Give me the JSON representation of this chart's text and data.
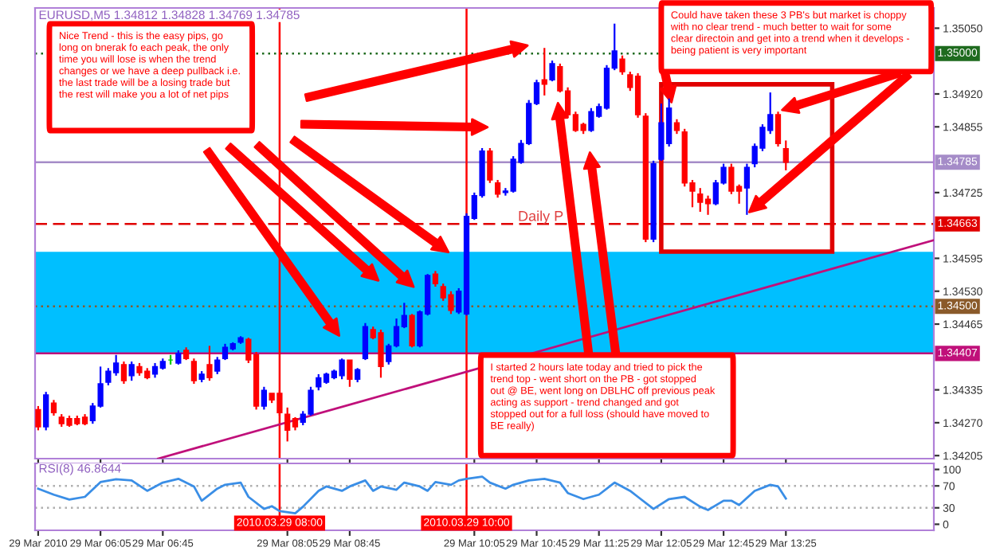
{
  "chart_data": [
    {
      "type": "candlestick",
      "title": "EURUSD,M5 1.34812 1.34828 1.34769 1.34785",
      "x": [
        "2010-03-29T05:25",
        "2010-03-29T05:30",
        "2010-03-29T05:35",
        "2010-03-29T05:40",
        "2010-03-29T05:45",
        "2010-03-29T05:50",
        "2010-03-29T05:55",
        "2010-03-29T06:00",
        "2010-03-29T06:05",
        "2010-03-29T06:10",
        "2010-03-29T06:15",
        "2010-03-29T06:20",
        "2010-03-29T06:25",
        "2010-03-29T06:30",
        "2010-03-29T06:35",
        "2010-03-29T06:40",
        "2010-03-29T06:45",
        "2010-03-29T06:50",
        "2010-03-29T06:55",
        "2010-03-29T07:00",
        "2010-03-29T07:05",
        "2010-03-29T07:10",
        "2010-03-29T07:15",
        "2010-03-29T07:20",
        "2010-03-29T07:25",
        "2010-03-29T07:30",
        "2010-03-29T07:35",
        "2010-03-29T07:40",
        "2010-03-29T07:45",
        "2010-03-29T07:50",
        "2010-03-29T07:55",
        "2010-03-29T08:00",
        "2010-03-29T08:05",
        "2010-03-29T08:10",
        "2010-03-29T08:15",
        "2010-03-29T08:20",
        "2010-03-29T08:25",
        "2010-03-29T08:30",
        "2010-03-29T08:35",
        "2010-03-29T08:40",
        "2010-03-29T08:45",
        "2010-03-29T08:50",
        "2010-03-29T08:55",
        "2010-03-29T09:00",
        "2010-03-29T09:05",
        "2010-03-29T09:10",
        "2010-03-29T09:15",
        "2010-03-29T09:20",
        "2010-03-29T09:25",
        "2010-03-29T09:30",
        "2010-03-29T09:35",
        "2010-03-29T09:40",
        "2010-03-29T09:45",
        "2010-03-29T09:50",
        "2010-03-29T09:55",
        "2010-03-29T10:00",
        "2010-03-29T10:05",
        "2010-03-29T10:10",
        "2010-03-29T10:15",
        "2010-03-29T10:20",
        "2010-03-29T10:25",
        "2010-03-29T10:30",
        "2010-03-29T10:35",
        "2010-03-29T10:40",
        "2010-03-29T10:45",
        "2010-03-29T10:50",
        "2010-03-29T10:55",
        "2010-03-29T11:00",
        "2010-03-29T11:05",
        "2010-03-29T11:10",
        "2010-03-29T11:15",
        "2010-03-29T11:20",
        "2010-03-29T11:25",
        "2010-03-29T11:30",
        "2010-03-29T11:35",
        "2010-03-29T11:40",
        "2010-03-29T11:45",
        "2010-03-29T11:50",
        "2010-03-29T11:55",
        "2010-03-29T12:00",
        "2010-03-29T12:05",
        "2010-03-29T12:10",
        "2010-03-29T12:15",
        "2010-03-29T12:20",
        "2010-03-29T12:25",
        "2010-03-29T12:30",
        "2010-03-29T12:35",
        "2010-03-29T12:40",
        "2010-03-29T12:45",
        "2010-03-29T12:50",
        "2010-03-29T12:55",
        "2010-03-29T13:00",
        "2010-03-29T13:05",
        "2010-03-29T13:10",
        "2010-03-29T13:15",
        "2010-03-29T13:20",
        "2010-03-29T13:25"
      ],
      "ohlc": [
        [
          1.34296,
          1.34303,
          1.34255,
          1.34262
        ],
        [
          1.34262,
          1.34331,
          1.34255,
          1.34325
        ],
        [
          1.34309,
          1.34315,
          1.34284,
          1.3429
        ],
        [
          1.34281,
          1.34287,
          1.34262,
          1.34268
        ],
        [
          1.34278,
          1.34284,
          1.34262,
          1.34265
        ],
        [
          1.34278,
          1.34284,
          1.34265,
          1.34268
        ],
        [
          1.34281,
          1.34287,
          1.34265,
          1.34268
        ],
        [
          1.34274,
          1.34309,
          1.34268,
          1.34303
        ],
        [
          1.34303,
          1.34381,
          1.343,
          1.34347
        ],
        [
          1.3435,
          1.34378,
          1.34344,
          1.34372
        ],
        [
          1.34369,
          1.34404,
          1.34363,
          1.34388
        ],
        [
          1.34385,
          1.34391,
          1.34347,
          1.34353
        ],
        [
          1.34363,
          1.34391,
          1.34353,
          1.34385
        ],
        [
          1.34381,
          1.34388,
          1.34363,
          1.34369
        ],
        [
          1.34372,
          1.34378,
          1.34356,
          1.34359
        ],
        [
          1.34366,
          1.34388,
          1.34359,
          1.34381
        ],
        [
          1.34378,
          1.34397,
          1.34375,
          1.34391
        ],
        [
          1.34394,
          1.34404,
          1.34385,
          1.34394
        ],
        [
          1.34388,
          1.34413,
          1.34385,
          1.34407
        ],
        [
          1.34413,
          1.34419,
          1.34394,
          1.34397
        ],
        [
          1.34391,
          1.34397,
          1.34347,
          1.34353
        ],
        [
          1.34356,
          1.34372,
          1.3435,
          1.34366
        ],
        [
          1.34385,
          1.34422,
          1.34353,
          1.34359
        ],
        [
          1.34372,
          1.344,
          1.34366,
          1.34394
        ],
        [
          1.34397,
          1.34426,
          1.34394,
          1.34419
        ],
        [
          1.34416,
          1.34429,
          1.34413,
          1.34426
        ],
        [
          1.34429,
          1.34441,
          1.34426,
          1.34438
        ],
        [
          1.34435,
          1.34438,
          1.34388,
          1.34394
        ],
        [
          1.34404,
          1.3441,
          1.34296,
          1.34303
        ],
        [
          1.34303,
          1.34341,
          1.34296,
          1.34334
        ],
        [
          1.34328,
          1.34328,
          1.34309,
          1.34315
        ],
        [
          1.34328,
          1.34334,
          1.34284,
          1.3429
        ],
        [
          1.34287,
          1.343,
          1.34233,
          1.34255
        ],
        [
          1.34278,
          1.34281,
          1.34255,
          1.34262
        ],
        [
          1.34271,
          1.34293,
          1.34265,
          1.34287
        ],
        [
          1.34287,
          1.34341,
          1.34284,
          1.34334
        ],
        [
          1.34341,
          1.34366,
          1.34334,
          1.34359
        ],
        [
          1.3435,
          1.34369,
          1.34347,
          1.34366
        ],
        [
          1.34359,
          1.34375,
          1.34356,
          1.34372
        ],
        [
          1.34363,
          1.34397,
          1.34356,
          1.34394
        ],
        [
          1.34394,
          1.34394,
          1.34341,
          1.34356
        ],
        [
          1.34356,
          1.34378,
          1.3435,
          1.34375
        ],
        [
          1.34397,
          1.34467,
          1.34394,
          1.3446
        ],
        [
          1.34454,
          1.3446,
          1.34435,
          1.34438
        ],
        [
          1.34448,
          1.34454,
          1.34359,
          1.34381
        ],
        [
          1.34391,
          1.34426,
          1.34385,
          1.34422
        ],
        [
          1.34422,
          1.34476,
          1.34419,
          1.3446
        ],
        [
          1.3446,
          1.34507,
          1.34457,
          1.34482
        ],
        [
          1.34482,
          1.34485,
          1.34419,
          1.34422
        ],
        [
          1.34422,
          1.34492,
          1.34419,
          1.34489
        ],
        [
          1.34485,
          1.34564,
          1.34482,
          1.34561
        ],
        [
          1.34564,
          1.3457,
          1.34539,
          1.34545
        ],
        [
          1.34539,
          1.34545,
          1.34511,
          1.34517
        ],
        [
          1.34523,
          1.3453,
          1.34485,
          1.34492
        ],
        [
          1.34489,
          1.34536,
          1.34485,
          1.3453
        ],
        [
          1.34485,
          1.34684,
          1.34482,
          1.34678
        ],
        [
          1.34674,
          1.34725,
          1.34671,
          1.34719
        ],
        [
          1.34719,
          1.34813,
          1.34715,
          1.34807
        ],
        [
          1.34807,
          1.34813,
          1.34744,
          1.3475
        ],
        [
          1.34744,
          1.3475,
          1.34715,
          1.34722
        ],
        [
          1.34725,
          1.34734,
          1.34719,
          1.34728
        ],
        [
          1.34728,
          1.34797,
          1.34725,
          1.34791
        ],
        [
          1.34785,
          1.34829,
          1.34782,
          1.34822
        ],
        [
          1.34822,
          1.34908,
          1.34819,
          1.34901
        ],
        [
          1.34901,
          1.34948,
          1.34898,
          1.34942
        ],
        [
          1.34948,
          1.35011,
          1.34917,
          1.34939
        ],
        [
          1.34948,
          1.34986,
          1.34945,
          1.3498
        ],
        [
          1.34974,
          1.3498,
          1.34923,
          1.34926
        ],
        [
          1.34926,
          1.34933,
          1.34873,
          1.34879
        ],
        [
          1.34879,
          1.34885,
          1.34845,
          1.34848
        ],
        [
          1.3486,
          1.34863,
          1.34841,
          1.34848
        ],
        [
          1.34848,
          1.34892,
          1.34845,
          1.34885
        ],
        [
          1.34876,
          1.34901,
          1.34873,
          1.34895
        ],
        [
          1.34892,
          1.34977,
          1.34889,
          1.34971
        ],
        [
          1.34971,
          1.35059,
          1.34967,
          1.35005
        ],
        [
          1.34989,
          1.34996,
          1.34958,
          1.34964
        ],
        [
          1.34958,
          1.34964,
          1.34926,
          1.34933
        ],
        [
          1.34955,
          1.34961,
          1.34873,
          1.34879
        ],
        [
          1.34876,
          1.34882,
          1.34627,
          1.34633
        ],
        [
          1.34633,
          1.34788,
          1.34627,
          1.34782
        ],
        [
          1.34791,
          1.34901,
          1.34788,
          1.34863
        ],
        [
          1.34822,
          1.34911,
          1.34816,
          1.34892
        ],
        [
          1.34863,
          1.3487,
          1.34841,
          1.34848
        ],
        [
          1.34845,
          1.34851,
          1.34737,
          1.34744
        ],
        [
          1.34744,
          1.3475,
          1.34696,
          1.34728
        ],
        [
          1.34722,
          1.34734,
          1.34687,
          1.34706
        ],
        [
          1.34712,
          1.34719,
          1.34681,
          1.34703
        ],
        [
          1.34703,
          1.3475,
          1.347,
          1.34744
        ],
        [
          1.34744,
          1.34782,
          1.34741,
          1.34775
        ],
        [
          1.34775,
          1.34782,
          1.34722,
          1.34728
        ],
        [
          1.34737,
          1.34741,
          1.34703,
          1.34728
        ],
        [
          1.34734,
          1.34782,
          1.34681,
          1.34775
        ],
        [
          1.34782,
          1.34822,
          1.34775,
          1.34816
        ],
        [
          1.34813,
          1.3486,
          1.34807,
          1.34854
        ],
        [
          1.34848,
          1.34923,
          1.34841,
          1.34879
        ],
        [
          1.34879,
          1.34885,
          1.34816,
          1.34822
        ],
        [
          1.34812,
          1.34828,
          1.34769,
          1.34785
        ]
      ],
      "colors": [
        "#ff0000",
        "#0000ff",
        "#ff0000",
        "#ff0000",
        "#ff0000",
        "#ff0000",
        "#ff0000",
        "#0000ff",
        "#0000ff",
        "#0000ff",
        "#0000ff",
        "#ff0000",
        "#0000ff",
        "#ff0000",
        "#ff0000",
        "#0000ff",
        "#0000ff",
        "#00cc00",
        "#0000ff",
        "#ff0000",
        "#ff0000",
        "#0000ff",
        "#ff0000",
        "#0000ff",
        "#0000ff",
        "#0000ff",
        "#0000ff",
        "#ff0000",
        "#ff0000",
        "#0000ff",
        "#ff0000",
        "#ff0000",
        "#ff0000",
        "#ff0000",
        "#0000ff",
        "#0000ff",
        "#0000ff",
        "#0000ff",
        "#0000ff",
        "#0000ff",
        "#ff0000",
        "#0000ff",
        "#0000ff",
        "#ff0000",
        "#ff0000",
        "#0000ff",
        "#0000ff",
        "#0000ff",
        "#ff0000",
        "#0000ff",
        "#0000ff",
        "#ff0000",
        "#ff0000",
        "#ff0000",
        "#0000ff",
        "#0000ff",
        "#0000ff",
        "#0000ff",
        "#ff0000",
        "#ff0000",
        "#0000ff",
        "#0000ff",
        "#0000ff",
        "#0000ff",
        "#0000ff",
        "#ff0000",
        "#0000ff",
        "#ff0000",
        "#ff0000",
        "#ff0000",
        "#ff0000",
        "#0000ff",
        "#0000ff",
        "#0000ff",
        "#0000ff",
        "#ff0000",
        "#ff0000",
        "#ff0000",
        "#ff0000",
        "#0000ff",
        "#0000ff",
        "#0000ff",
        "#ff0000",
        "#ff0000",
        "#ff0000",
        "#ff0000",
        "#ff0000",
        "#0000ff",
        "#0000ff",
        "#ff0000",
        "#ff0000",
        "#0000ff",
        "#0000ff",
        "#0000ff",
        "#0000ff",
        "#ff0000",
        "#ff0000"
      ],
      "series": [
        {
          "type": "line",
          "color": "#c0107a",
          "x": [
            "2010-03-29T06:42",
            "2010-03-29T15:00"
          ],
          "values": [
            1.34199,
            1.34631
          ]
        }
      ],
      "xlim": [
        "2010-03-29T05:23",
        "2010-03-29T15:00"
      ],
      "ylim": [
        1.34199,
        1.3509
      ],
      "xticks": [
        {
          "value": "2010-03-29T05:25",
          "label": null
        },
        {
          "value": "2010-03-29T06:05",
          "label": null
        },
        {
          "value": "2010-03-29T06:45",
          "label": null
        },
        {
          "value": "2010-03-29T08:05",
          "label": null
        },
        {
          "value": "2010-03-29T08:45",
          "label": null
        },
        {
          "value": "2010-03-29T10:05",
          "label": null
        },
        {
          "value": "2010-03-29T10:45",
          "label": null
        },
        {
          "value": "2010-03-29T11:25",
          "label": null
        },
        {
          "value": "2010-03-29T12:05",
          "label": null
        },
        {
          "value": "2010-03-29T12:45",
          "label": null
        },
        {
          "value": "2010-03-29T13:25",
          "label": null
        }
      ],
      "yticks": [
        {
          "value": 1.34205,
          "label": "1.34205"
        },
        {
          "value": 1.3427,
          "label": "1.34270"
        },
        {
          "value": 1.34335,
          "label": "1.34335"
        },
        {
          "value": 1.34465,
          "label": "1.34465"
        },
        {
          "value": 1.3453,
          "label": "1.34530"
        },
        {
          "value": 1.34595,
          "label": "1.34595"
        },
        {
          "value": 1.34725,
          "label": "1.34725"
        },
        {
          "value": 1.34855,
          "label": "1.34855"
        },
        {
          "value": 1.3492,
          "label": "1.34920"
        },
        {
          "value": 1.3505,
          "label": "1.35050"
        }
      ],
      "tick_labels": "y",
      "bands": [
        {
          "axis": "y",
          "from": 1.34407,
          "to": 1.34608,
          "color": "#00bfff"
        }
      ],
      "ref_lines": [
        {
          "axis": "y",
          "value": 1.35,
          "label": "1.35000",
          "color": "#1f6b1f",
          "line_style": "dotted"
        },
        {
          "axis": "y",
          "value": 1.34785,
          "label": "1.34785",
          "color": "#a58cc8",
          "line_style": "solid"
        },
        {
          "axis": "y",
          "value": 1.34663,
          "label": "1.34663",
          "color": "#e00000",
          "line_style": "dashed"
        },
        {
          "axis": "y",
          "value": 1.345,
          "label": "1.34500",
          "color": "#8a5a2a",
          "line_style": "dotted"
        },
        {
          "axis": "y",
          "value": 1.34407,
          "label": "1.34407",
          "color": "#c0107a",
          "line_style": "solid"
        },
        {
          "axis": "x",
          "value": "2010-03-29T08:00",
          "color": "#ff0000",
          "line_style": "solid"
        },
        {
          "axis": "x",
          "value": "2010-03-29T10:00",
          "color": "#ff0000",
          "line_style": "solid"
        }
      ],
      "annotations": [
        "Nice Trend - this is the easy pips, go\nlong on bnerak fo each peak, the only\ntime you will lose is when the trend\nchanges or we have a deep pullback i.e.\nthe last trade will be a losing trade but\nthe rest will make you a lot of net pips",
        "Could have taken these 3 PB's but market is choppy\nwith no clear trend - much better to wait for some\nclear directoin and get into a trend when it develops -\nbeing patient is very important",
        "I started 2 hours late today and tried to pick the\ntrend top - went short on the PB - got stopped\nout @ BE, went long on DBLHC off previous peak\nacting as support - trend changed and got\nstopped out for a full loss (should have moved to\nBE really)",
        {
          "text": "Daily P",
          "x": "2010-03-29T10:33",
          "y": 1.34663
        }
      ]
    },
    {
      "type": "line",
      "title": "RSI(8) 46.8644",
      "x": [
        "2010-03-29T05:25",
        "2010-03-29T05:35",
        "2010-03-29T05:45",
        "2010-03-29T05:55",
        "2010-03-29T06:05",
        "2010-03-29T06:15",
        "2010-03-29T06:25",
        "2010-03-29T06:35",
        "2010-03-29T06:45",
        "2010-03-29T06:55",
        "2010-03-29T07:05",
        "2010-03-29T07:10",
        "2010-03-29T07:20",
        "2010-03-29T07:25",
        "2010-03-29T07:35",
        "2010-03-29T07:40",
        "2010-03-29T07:50",
        "2010-03-29T07:55",
        "2010-03-29T08:00",
        "2010-03-29T08:10",
        "2010-03-29T08:15",
        "2010-03-29T08:25",
        "2010-03-29T08:30",
        "2010-03-29T08:40",
        "2010-03-29T08:45",
        "2010-03-29T08:55",
        "2010-03-29T09:00",
        "2010-03-29T09:05",
        "2010-03-29T09:15",
        "2010-03-29T09:20",
        "2010-03-29T09:30",
        "2010-03-29T09:35",
        "2010-03-29T09:40",
        "2010-03-29T09:50",
        "2010-03-29T09:55",
        "2010-03-29T10:00",
        "2010-03-29T10:10",
        "2010-03-29T10:15",
        "2010-03-29T10:25",
        "2010-03-29T10:30",
        "2010-03-29T10:40",
        "2010-03-29T10:50",
        "2010-03-29T11:00",
        "2010-03-29T11:05",
        "2010-03-29T11:15",
        "2010-03-29T11:25",
        "2010-03-29T11:35",
        "2010-03-29T11:45",
        "2010-03-29T11:50",
        "2010-03-29T12:00",
        "2010-03-29T12:10",
        "2010-03-29T12:20",
        "2010-03-29T12:30",
        "2010-03-29T12:35",
        "2010-03-29T12:45",
        "2010-03-29T12:50",
        "2010-03-29T12:55",
        "2010-03-29T13:05",
        "2010-03-29T13:15",
        "2010-03-29T13:20",
        "2010-03-29T13:25"
      ],
      "series": [
        {
          "color": "#3a8ee6",
          "values": [
            65,
            54,
            45,
            50,
            77,
            82,
            80,
            61,
            76,
            83,
            69,
            43,
            65,
            72,
            76,
            50,
            28,
            33,
            24,
            20,
            32,
            61,
            69,
            61,
            69,
            80,
            61,
            69,
            63,
            76,
            69,
            61,
            77,
            72,
            80,
            83,
            87,
            76,
            65,
            72,
            80,
            83,
            76,
            57,
            46,
            54,
            76,
            61,
            50,
            28,
            46,
            50,
            32,
            26,
            43,
            43,
            35,
            61,
            72,
            69,
            47
          ]
        }
      ],
      "xlim": [
        "2010-03-29T05:23",
        "2010-03-29T15:00"
      ],
      "ylim": [
        -11,
        111
      ],
      "xticks": [
        {
          "value": "2010-03-29T05:25",
          "label": "29 Mar 2010"
        },
        {
          "value": "2010-03-29T06:05",
          "label": "29 Mar 06:05"
        },
        {
          "value": "2010-03-29T06:45",
          "label": "29 Mar 06:45"
        },
        {
          "value": "2010-03-29T08:05",
          "label": "29 Mar 08:05"
        },
        {
          "value": "2010-03-29T08:45",
          "label": "29 Mar 08:45"
        },
        {
          "value": "2010-03-29T10:05",
          "label": "29 Mar 10:05"
        },
        {
          "value": "2010-03-29T10:45",
          "label": "29 Mar 10:45"
        },
        {
          "value": "2010-03-29T11:25",
          "label": "29 Mar 11:25"
        },
        {
          "value": "2010-03-29T12:05",
          "label": "29 Mar 12:05"
        },
        {
          "value": "2010-03-29T12:45",
          "label": "29 Mar 12:45"
        },
        {
          "value": "2010-03-29T13:25",
          "label": "29 Mar 13:25"
        }
      ],
      "yticks": [
        0,
        30,
        70,
        100
      ],
      "ref_lines": [
        {
          "axis": "y",
          "value": 70,
          "color": "#b0b0b0",
          "line_style": "dotted"
        },
        {
          "axis": "y",
          "value": 30,
          "color": "#b0b0b0",
          "line_style": "dotted"
        },
        {
          "axis": "x",
          "value": "2010-03-29T08:00",
          "label": "2010.03.29 08:00",
          "color": "#ff0000",
          "line_style": "solid"
        },
        {
          "axis": "x",
          "value": "2010-03-29T10:00",
          "label": "2010.03.29 10:00",
          "color": "#ff0000",
          "line_style": "solid"
        }
      ]
    }
  ]
}
